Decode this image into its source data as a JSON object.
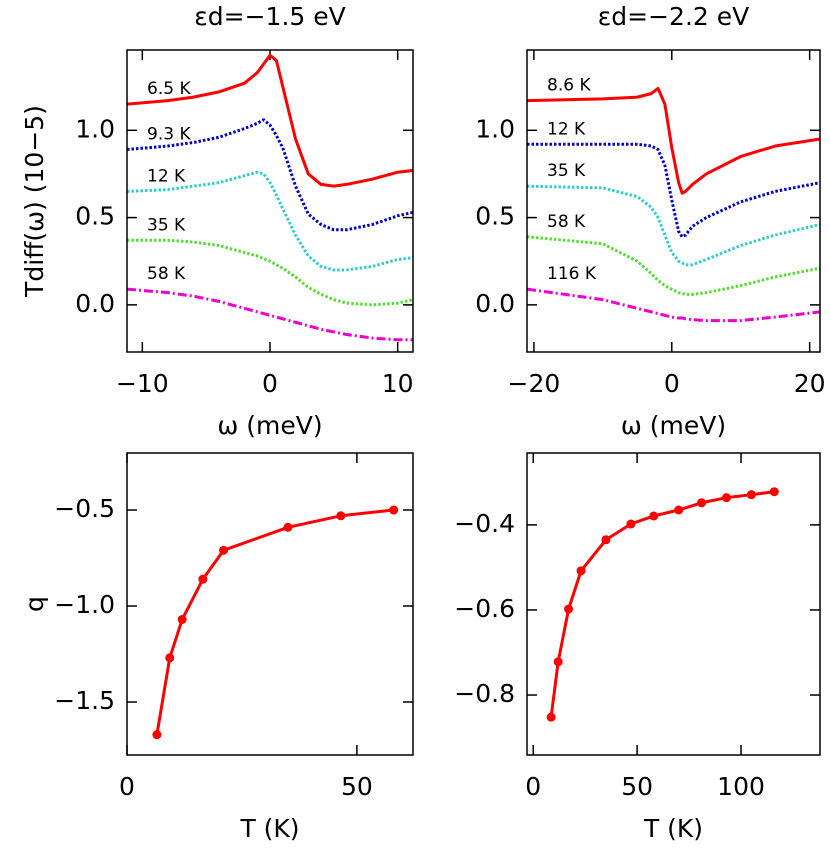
{
  "chart_data": [
    {
      "type": "line",
      "title": "εd=−1.5 eV",
      "x_label": "ω (meV)",
      "y_label": "Tdiff(ω) (10−5)",
      "x": [
        -11.2,
        -8,
        -6,
        -4,
        -2,
        -1,
        -0.5,
        0,
        0.5,
        1,
        2,
        3,
        4,
        5,
        6,
        8,
        10,
        11.2
      ],
      "series": [
        {
          "name": "6.5 K",
          "color": "#ff0000",
          "style": "solid",
          "values": [
            1.15,
            1.17,
            1.19,
            1.22,
            1.27,
            1.33,
            1.38,
            1.43,
            1.4,
            1.25,
            0.95,
            0.75,
            0.69,
            0.68,
            0.69,
            0.72,
            0.76,
            0.77
          ]
        },
        {
          "name": "9.3 K",
          "color": "#0000cc",
          "style": "dotted",
          "values": [
            0.89,
            0.91,
            0.93,
            0.96,
            1.01,
            1.04,
            1.06,
            1.03,
            0.97,
            0.9,
            0.68,
            0.52,
            0.46,
            0.43,
            0.43,
            0.46,
            0.51,
            0.53
          ]
        },
        {
          "name": "12 K",
          "color": "#33cccc",
          "style": "dotted",
          "values": [
            0.65,
            0.66,
            0.68,
            0.7,
            0.74,
            0.76,
            0.75,
            0.7,
            0.63,
            0.55,
            0.4,
            0.28,
            0.22,
            0.2,
            0.2,
            0.22,
            0.26,
            0.27
          ]
        },
        {
          "name": "35 K",
          "color": "#55dd33",
          "style": "dotted",
          "values": [
            0.37,
            0.37,
            0.36,
            0.34,
            0.3,
            0.28,
            0.265,
            0.25,
            0.23,
            0.21,
            0.16,
            0.1,
            0.06,
            0.03,
            0.01,
            0.0,
            0.01,
            0.03
          ]
        },
        {
          "name": "58 K",
          "color": "#ee00cc",
          "style": "dash-dot",
          "values": [
            0.09,
            0.07,
            0.05,
            0.02,
            -0.02,
            -0.04,
            -0.05,
            -0.06,
            -0.07,
            -0.08,
            -0.1,
            -0.12,
            -0.14,
            -0.155,
            -0.17,
            -0.19,
            -0.2,
            -0.2
          ]
        }
      ],
      "xlim": [
        -11.2,
        11.2
      ],
      "ylim": [
        -0.27,
        1.46
      ],
      "xticks": [
        {
          "value": -10,
          "label": "−10"
        },
        0,
        10
      ],
      "yticks": [
        {
          "value": 0,
          "label": "0.0"
        },
        0.5,
        {
          "value": 1,
          "label": "1.0"
        }
      ]
    },
    {
      "type": "line",
      "title": "εd=−2.2 eV",
      "x_label": "ω (meV)",
      "x": [
        -21,
        -10,
        -5,
        -3,
        -2,
        -1,
        0,
        1,
        1.5,
        2,
        3,
        5,
        10,
        15,
        21.5
      ],
      "series": [
        {
          "name": "8.6 K",
          "color": "#ff0000",
          "style": "solid",
          "values": [
            1.17,
            1.18,
            1.19,
            1.21,
            1.24,
            1.15,
            0.9,
            0.7,
            0.64,
            0.65,
            0.69,
            0.75,
            0.85,
            0.91,
            0.95
          ]
        },
        {
          "name": "12 K",
          "color": "#0000cc",
          "style": "dotted",
          "values": [
            0.92,
            0.92,
            0.92,
            0.91,
            0.89,
            0.8,
            0.6,
            0.42,
            0.39,
            0.4,
            0.45,
            0.5,
            0.59,
            0.65,
            0.7
          ]
        },
        {
          "name": "35 K",
          "color": "#33cccc",
          "style": "dotted",
          "values": [
            0.68,
            0.67,
            0.62,
            0.56,
            0.5,
            0.4,
            0.3,
            0.25,
            0.24,
            0.23,
            0.23,
            0.26,
            0.34,
            0.4,
            0.46
          ]
        },
        {
          "name": "58 K",
          "color": "#55dd33",
          "style": "dotted",
          "values": [
            0.39,
            0.35,
            0.25,
            0.18,
            0.14,
            0.11,
            0.09,
            0.07,
            0.065,
            0.06,
            0.06,
            0.07,
            0.11,
            0.16,
            0.21
          ]
        },
        {
          "name": "116 K",
          "color": "#ee00cc",
          "style": "dash-dot",
          "values": [
            0.09,
            0.03,
            -0.02,
            -0.04,
            -0.05,
            -0.06,
            -0.07,
            -0.075,
            -0.075,
            -0.08,
            -0.085,
            -0.09,
            -0.09,
            -0.07,
            -0.04
          ]
        }
      ],
      "xlim": [
        -21,
        21.5
      ],
      "ylim": [
        -0.27,
        1.46
      ],
      "xticks": [
        {
          "value": -20,
          "label": "−20"
        },
        0,
        20
      ],
      "yticks": [
        {
          "value": 0,
          "label": "0.0"
        },
        0.5,
        {
          "value": 1,
          "label": "1.0"
        }
      ]
    },
    {
      "type": "line",
      "markers": true,
      "x_label": "T (K)",
      "y_label": "q",
      "x": [
        6.5,
        9.3,
        12,
        16.5,
        21,
        35,
        46.5,
        58
      ],
      "series": [
        {
          "color": "#ff0000",
          "style": "solid",
          "values": [
            -1.67,
            -1.27,
            -1.07,
            -0.86,
            -0.71,
            -0.59,
            -0.53,
            -0.5
          ]
        }
      ],
      "xlim": [
        0,
        62.2
      ],
      "ylim": [
        -1.776,
        -0.203
      ],
      "xticks": [
        0,
        50
      ],
      "yticks": [
        {
          "value": -1.5,
          "label": "−1.5"
        },
        {
          "value": -1,
          "label": "−1.0"
        },
        {
          "value": -0.5,
          "label": "−0.5"
        }
      ]
    },
    {
      "type": "line",
      "markers": true,
      "x_label": "T (K)",
      "x": [
        8.6,
        12,
        17,
        23,
        35,
        47,
        58,
        70,
        81,
        93,
        105,
        116
      ],
      "series": [
        {
          "color": "#ff0000",
          "style": "solid",
          "values": [
            -0.852,
            -0.722,
            -0.598,
            -0.508,
            -0.435,
            -0.398,
            -0.379,
            -0.365,
            -0.348,
            -0.336,
            -0.329,
            -0.322
          ]
        }
      ],
      "xlim": [
        -3,
        138
      ],
      "ylim": [
        -0.941,
        -0.231
      ],
      "xticks": [
        0,
        50,
        100
      ],
      "yticks": [
        {
          "value": -0.8,
          "label": "−0.8"
        },
        {
          "value": -0.6,
          "label": "−0.6"
        },
        {
          "value": -0.4,
          "label": "−0.4"
        }
      ]
    }
  ]
}
